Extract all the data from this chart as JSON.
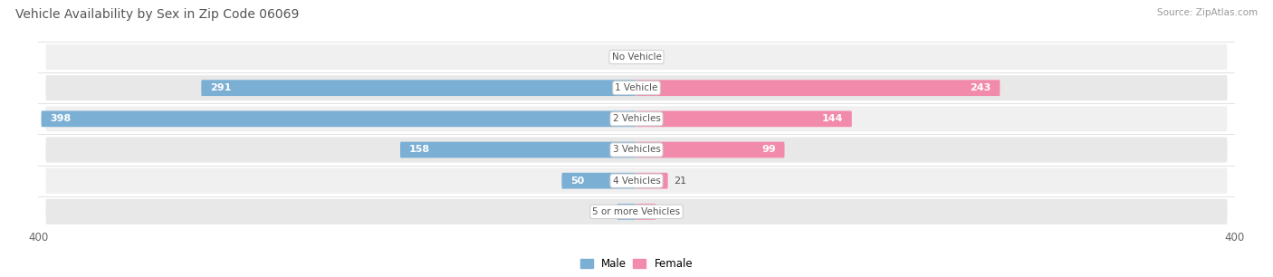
{
  "title": "Vehicle Availability by Sex in Zip Code 06069",
  "source": "Source: ZipAtlas.com",
  "categories": [
    "No Vehicle",
    "1 Vehicle",
    "2 Vehicles",
    "3 Vehicles",
    "4 Vehicles",
    "5 or more Vehicles"
  ],
  "male_values": [
    0,
    291,
    398,
    158,
    50,
    13
  ],
  "female_values": [
    0,
    243,
    144,
    99,
    21,
    13
  ],
  "male_color": "#7bafd4",
  "female_color": "#f28bab",
  "row_bg_color_odd": "#f0f0f0",
  "row_bg_color_even": "#e8e8e8",
  "axis_max": 400,
  "title_color": "#555555",
  "source_color": "#999999",
  "legend_male": "Male",
  "legend_female": "Female",
  "value_color_inside": "#ffffff",
  "value_color_outside": "#555555",
  "category_label_color": "#555555",
  "inside_threshold": 30
}
